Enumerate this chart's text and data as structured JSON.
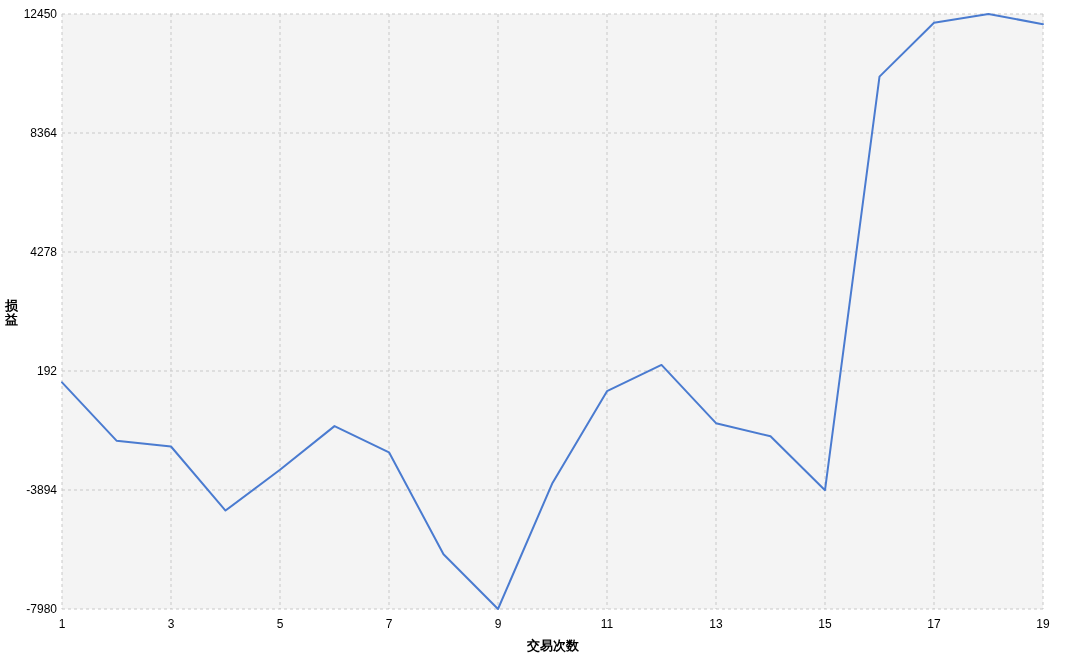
{
  "chart_data": {
    "type": "line",
    "xlabel": "交易次数",
    "ylabel": "损益",
    "x": [
      1,
      2,
      3,
      4,
      5,
      6,
      7,
      8,
      9,
      10,
      11,
      12,
      13,
      14,
      15,
      16,
      17,
      18,
      19
    ],
    "series": [
      {
        "color": "#4a7bd0",
        "values": [
          -200,
          -2200,
          -2400,
          -4600,
          -3200,
          -1700,
          -2600,
          -6100,
          -7980,
          -3650,
          -500,
          400,
          -1600,
          -2050,
          -3900,
          10300,
          12150,
          12450,
          12100
        ]
      }
    ],
    "xlim": [
      1,
      19
    ],
    "xticks": [
      1,
      3,
      5,
      7,
      9,
      11,
      13,
      15,
      17,
      19
    ],
    "ylim": [
      -7980,
      12450
    ],
    "yticks": [
      -7980,
      -3894,
      192,
      4278,
      8364,
      12450
    ],
    "grid": true
  }
}
